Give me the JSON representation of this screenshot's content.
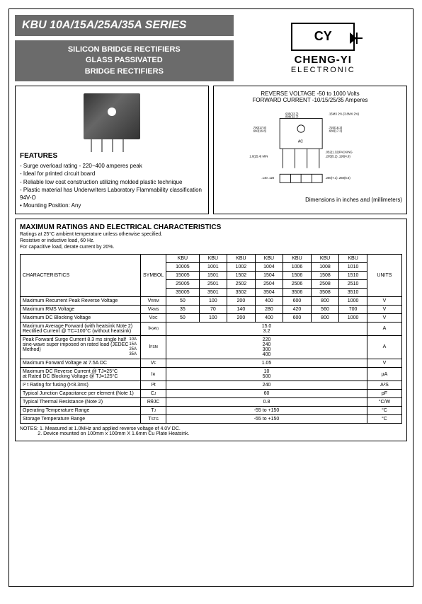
{
  "header": {
    "title": "KBU 10A/15A/25A/35A SERIES",
    "subtitle1": "SILICON BRIDGE RECTIFIERS",
    "subtitle2": "GLASS PASSIVATED",
    "subtitle3": "BRIDGE  RECTIFIERS",
    "brand": "CHENG-YI",
    "brand_sub": "ELECTRONIC",
    "logo_text": "CY"
  },
  "specs": {
    "rev_line1": "REVERSE VOLTAGE -50 to 1000 Volts",
    "rev_line2": "FORWARD CURRENT -10/15/25/35  Amperes"
  },
  "features": {
    "heading": "FEATURES",
    "items": [
      "Surge overload rating - 220~400 amperes peak",
      "Ideal for printed circuit board",
      "Reliable low cost construction utilizing molded plastic technique",
      "Plastic material has Underwriters Laboratory Flammability classification 94V-O",
      "Mounting Position: Any"
    ]
  },
  "dim_label": "Dimensions in inches and (millimeters)",
  "dimensions": {
    "a": ".935(23.7)",
    "b": ".898(22.7)",
    "c": ".15MX 2% (3.8MX 2%)",
    "d": ".700(17.8)",
    "e": ".660(16.8)",
    "f": ".720(18.3)",
    "g": ".680(17.3)",
    "h": "1.0(25.4) MIN",
    "i": ".052(1.32)PACKING",
    "j": ".205(5.2) .195(4.9)",
    "k": ".140 .120",
    "l": ".280(7.1) .260(6.6)"
  },
  "ratings": {
    "heading": "MAXIMUM  RATINGS  AND  ELECTRICAL  CHARACTERISTICS",
    "sub1": "Ratings at 25°C ambient temperature unless otherwise specified.",
    "sub2": "Resistive or inductive load, 60 Hz.",
    "sub3": "For capacitive load, derate current by 20%.",
    "char_label": "CHARACTERISTICS",
    "symbol_label": "SYMBOL",
    "units_label": "UNITS",
    "part_rows": [
      [
        "KBU",
        "KBU",
        "KBU",
        "KBU",
        "KBU",
        "KBU",
        "KBU"
      ],
      [
        "10005",
        "1001",
        "1002",
        "1004",
        "1006",
        "1008",
        "1010"
      ],
      [
        "15005",
        "1501",
        "1502",
        "1504",
        "1506",
        "1508",
        "1510"
      ],
      [
        "25005",
        "2501",
        "2502",
        "2504",
        "2506",
        "2508",
        "2510"
      ],
      [
        "35005",
        "3501",
        "3502",
        "3504",
        "3506",
        "3508",
        "3510"
      ]
    ],
    "rows": [
      {
        "c": "Maximum Recurrent Peak Reverse Voltage",
        "s": "V",
        "sub": "RRM",
        "v": [
          "50",
          "100",
          "200",
          "400",
          "600",
          "800",
          "1000"
        ],
        "u": "V"
      },
      {
        "c": "Maximum RMS Voltage",
        "s": "V",
        "sub": "RMS",
        "v": [
          "35",
          "70",
          "140",
          "280",
          "420",
          "560",
          "700"
        ],
        "u": "V"
      },
      {
        "c": "Maximum DC Blocking Voltage",
        "s": "V",
        "sub": "DC",
        "v": [
          "50",
          "100",
          "200",
          "400",
          "600",
          "800",
          "1000"
        ],
        "u": "V"
      },
      {
        "c": "Maximum Average Forward (with heatsink Note 2) Rectified Current @ TC=100°C (without heatsink)",
        "s": "I",
        "sub": "F(AV)",
        "span": "15.0\n3.2",
        "u": "A"
      },
      {
        "c": "Peak Forward Surge Current 8.3 ms single half sine-wave super imposed on rated load (JEDEC Method)",
        "multi": "10A\n15A\n25A\n35A",
        "s": "I",
        "sub": "FSM",
        "span": "220\n240\n300\n400",
        "u": "A"
      },
      {
        "c": "Maximum Forward Voltage at 7.5A DC",
        "s": "V",
        "sub": "F",
        "span": "1.05",
        "u": "V"
      },
      {
        "c": "Maximum DC Reverse Current       @ TJ=25°C\nat Rated DC Blocking Voltage      @ TJ=125°C",
        "s": "I",
        "sub": "R",
        "span": "10\n500",
        "u": "µA"
      },
      {
        "c": "I² t Rating for fusing (t<8.3ms)",
        "s": "I²t",
        "sub": "",
        "span": "240",
        "u": "A²S"
      },
      {
        "c": "Typical Junction Capacitance per element (Note 1)",
        "s": "C",
        "sub": "J",
        "span": "60",
        "u": "pF"
      },
      {
        "c": "Typical Thermal Resistance (Note 2)",
        "s": "RθJC",
        "sub": "",
        "span": "0.8",
        "u": "°C/W"
      },
      {
        "c": "Operating Temperature Range",
        "s": "T",
        "sub": "J",
        "span": "-55 to +150",
        "u": "°C"
      },
      {
        "c": "Storage Temperature Range",
        "s": "T",
        "sub": "STG",
        "span": "-55 to +150",
        "u": "°C"
      }
    ]
  },
  "notes": {
    "heading": "NOTES:",
    "n1": "1. Measured at 1.0MHz and applied reverse voltage of 4.0V DC.",
    "n2": "2. Device mounted on 100mm x 100mm X 1.6mm Cu Plate Heatsink."
  },
  "colors": {
    "header_bg": "#6b6b6b",
    "text_white": "#ffffff",
    "border": "#000000"
  }
}
